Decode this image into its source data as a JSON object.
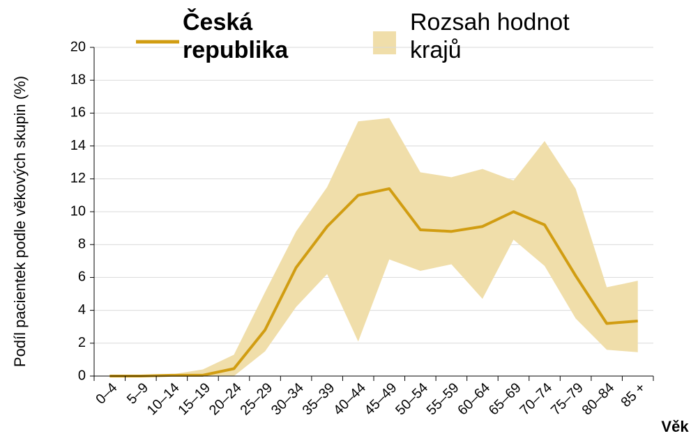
{
  "chart_data": {
    "type": "line-band",
    "categories": [
      "0–4",
      "5–9",
      "10–14",
      "15–19",
      "20–24",
      "25–29",
      "30–34",
      "35–39",
      "40–44",
      "45–49",
      "50–54",
      "55–59",
      "60–64",
      "65–69",
      "70–74",
      "75–79",
      "80–84",
      "85 +"
    ],
    "series": [
      {
        "name": "Česká republika",
        "color": "#d19d12",
        "values": [
          0,
          0,
          0.05,
          0.05,
          0.45,
          2.8,
          6.6,
          9.1,
          11,
          11.4,
          8.9,
          8.8,
          9.1,
          10,
          9.2,
          6.1,
          3.2,
          3.35
        ]
      },
      {
        "name": "Rozsah hodnot krajů",
        "color": "#f0deaa",
        "lower": [
          0,
          0,
          0,
          0,
          0,
          1.5,
          4.2,
          6.2,
          2.1,
          7.1,
          6.4,
          6.8,
          4.7,
          8.3,
          6.7,
          3.5,
          1.6,
          1.45
        ],
        "upper": [
          0,
          0,
          0.1,
          0.4,
          1.3,
          5.1,
          8.8,
          11.5,
          15.5,
          15.7,
          12.4,
          12.1,
          12.6,
          11.9,
          14.3,
          11.4,
          5.4,
          5.8
        ]
      }
    ],
    "xlabel": "Věk",
    "ylabel": "Podíl pacientek podle věkových skupin (%)",
    "ylim": [
      0,
      20
    ],
    "yticks": [
      0,
      2,
      4,
      6,
      8,
      10,
      12,
      14,
      16,
      18,
      20
    ],
    "grid": true
  }
}
